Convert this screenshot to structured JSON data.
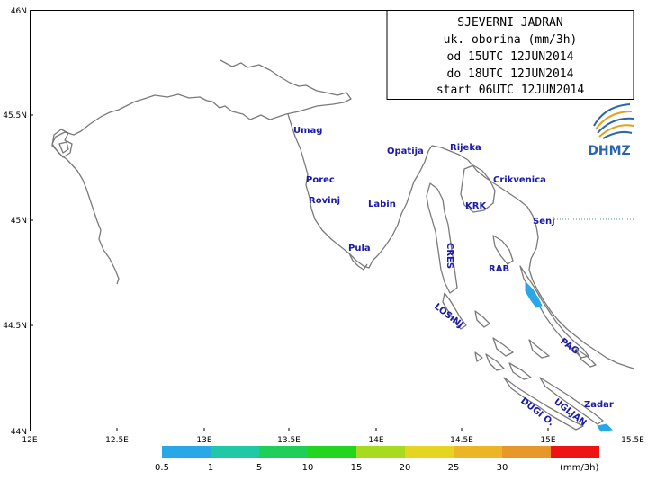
{
  "title": {
    "lines": [
      "SJEVERNI JADRAN",
      "uk. oborina (mm/3h)",
      "od 15UTC 12JUN2014",
      "do 18UTC 12JUN2014",
      "start 06UTC 12JUN2014"
    ]
  },
  "logo": {
    "text": "DHMZ"
  },
  "axes": {
    "x_ticks": [
      "12E",
      "12.5E",
      "13E",
      "13.5E",
      "14E",
      "14.5E",
      "15E",
      "15.5E"
    ],
    "y_ticks": [
      "46N",
      "45.5N",
      "45N",
      "44.5N",
      "44N"
    ]
  },
  "places": [
    "Umag",
    "Porec",
    "Rovinj",
    "Pula",
    "Labin",
    "Opatija",
    "Rijeka",
    "Crikvenica",
    "KRK",
    "Senj",
    "RAB",
    "Zadar"
  ],
  "islands": [
    "CRES",
    "LOSINJ",
    "PAG",
    "UGLJAN",
    "DUGI O."
  ],
  "legend": {
    "labels": [
      "0.5",
      "1",
      "5",
      "10",
      "15",
      "20",
      "25",
      "30"
    ],
    "unit": "(mm/3h)",
    "colors": [
      "#2aa7e6",
      "#20c8a8",
      "#20cf5a",
      "#22d620",
      "#a6db20",
      "#e6d520",
      "#ecb528",
      "#e8982a",
      "#ee1414"
    ]
  },
  "chart_data": {
    "type": "heatmap",
    "title": "SJEVERNI JADRAN uk. oborina (mm/3h) od 15UTC 12JUN2014 do 18UTC 12JUN2014 start 06UTC 12JUN2014",
    "xlim": [
      12,
      15.5
    ],
    "ylim": [
      44,
      46
    ],
    "grid": false,
    "legend_placement": "bottom",
    "color_levels": [
      0.5,
      1,
      5,
      10,
      15,
      20,
      25,
      30
    ],
    "precip_areas": [
      {
        "lon_range": [
          14.83,
          14.93
        ],
        "lat_range": [
          44.55,
          44.7
        ],
        "level": "0.5-1"
      },
      {
        "lon_range": [
          15.25,
          15.33
        ],
        "lat_range": [
          44.0,
          44.04
        ],
        "level": "0.5-1"
      }
    ]
  }
}
